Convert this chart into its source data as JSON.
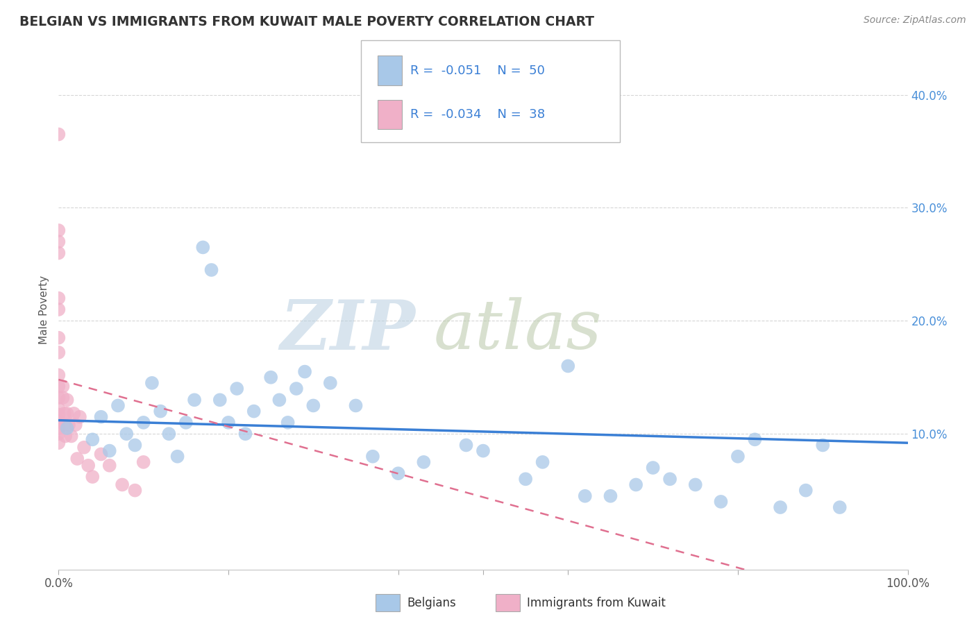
{
  "title": "BELGIAN VS IMMIGRANTS FROM KUWAIT MALE POVERTY CORRELATION CHART",
  "source": "Source: ZipAtlas.com",
  "ylabel": "Male Poverty",
  "blue_color": "#a8c8e8",
  "pink_color": "#f0b0c8",
  "blue_line_color": "#3a7fd5",
  "pink_line_color": "#e07090",
  "y_ticks": [
    0.1,
    0.2,
    0.3,
    0.4
  ],
  "y_tick_labels": [
    "10.0%",
    "20.0%",
    "30.0%",
    "40.0%"
  ],
  "x_range": [
    0.0,
    1.0
  ],
  "y_range": [
    -0.02,
    0.44
  ],
  "blue_trend": [
    0.0,
    1.0,
    0.112,
    0.092
  ],
  "pink_trend": [
    0.0,
    1.0,
    0.148,
    -0.06
  ],
  "belgians_x": [
    0.01,
    0.04,
    0.05,
    0.06,
    0.07,
    0.08,
    0.09,
    0.1,
    0.11,
    0.12,
    0.13,
    0.14,
    0.15,
    0.16,
    0.17,
    0.18,
    0.19,
    0.2,
    0.21,
    0.22,
    0.23,
    0.25,
    0.26,
    0.27,
    0.28,
    0.29,
    0.3,
    0.32,
    0.35,
    0.37,
    0.4,
    0.43,
    0.48,
    0.5,
    0.55,
    0.57,
    0.6,
    0.62,
    0.65,
    0.68,
    0.7,
    0.72,
    0.75,
    0.78,
    0.8,
    0.82,
    0.85,
    0.88,
    0.9,
    0.92
  ],
  "belgians_y": [
    0.105,
    0.095,
    0.115,
    0.085,
    0.125,
    0.1,
    0.09,
    0.11,
    0.145,
    0.12,
    0.1,
    0.08,
    0.11,
    0.13,
    0.265,
    0.245,
    0.13,
    0.11,
    0.14,
    0.1,
    0.12,
    0.15,
    0.13,
    0.11,
    0.14,
    0.155,
    0.125,
    0.145,
    0.125,
    0.08,
    0.065,
    0.075,
    0.09,
    0.085,
    0.06,
    0.075,
    0.16,
    0.045,
    0.045,
    0.055,
    0.07,
    0.06,
    0.055,
    0.04,
    0.08,
    0.095,
    0.035,
    0.05,
    0.09,
    0.035
  ],
  "kuwait_x": [
    0.0,
    0.0,
    0.0,
    0.0,
    0.0,
    0.0,
    0.0,
    0.0,
    0.0,
    0.0,
    0.0,
    0.0,
    0.0,
    0.0,
    0.0,
    0.0,
    0.0,
    0.005,
    0.005,
    0.007,
    0.007,
    0.008,
    0.01,
    0.01,
    0.012,
    0.015,
    0.018,
    0.02,
    0.022,
    0.025,
    0.03,
    0.035,
    0.04,
    0.05,
    0.06,
    0.075,
    0.09,
    0.1
  ],
  "kuwait_y": [
    0.365,
    0.28,
    0.27,
    0.26,
    0.22,
    0.21,
    0.185,
    0.172,
    0.152,
    0.142,
    0.132,
    0.122,
    0.117,
    0.112,
    0.105,
    0.1,
    0.092,
    0.142,
    0.132,
    0.118,
    0.108,
    0.098,
    0.13,
    0.118,
    0.108,
    0.098,
    0.118,
    0.108,
    0.078,
    0.115,
    0.088,
    0.072,
    0.062,
    0.082,
    0.072,
    0.055,
    0.05,
    0.075
  ]
}
